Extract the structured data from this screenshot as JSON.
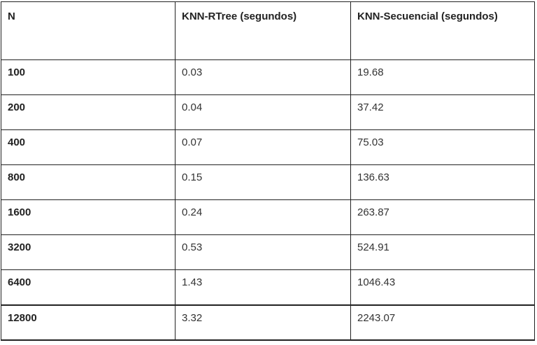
{
  "table": {
    "headers": [
      "N",
      "KNN-RTree (segundos)",
      "KNN-Secuencial (segundos)"
    ],
    "rows": [
      [
        "100",
        "0.03",
        "19.68"
      ],
      [
        "200",
        "0.04",
        "37.42"
      ],
      [
        "400",
        "0.07",
        "75.03"
      ],
      [
        "800",
        "0.15",
        "136.63"
      ],
      [
        "1600",
        "0.24",
        "263.87"
      ],
      [
        "3200",
        "0.53",
        "524.91"
      ],
      [
        "6400",
        "1.43",
        "1046.43"
      ],
      [
        "12800",
        "3.32",
        "2243.07"
      ]
    ]
  }
}
